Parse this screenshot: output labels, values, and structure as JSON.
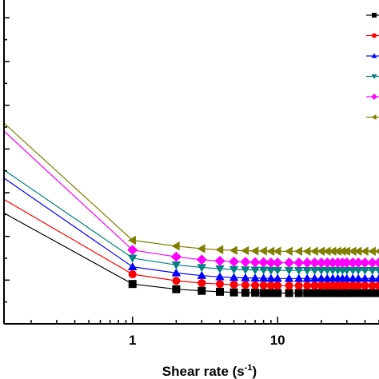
{
  "chart_data": {
    "type": "line",
    "title": "",
    "xlabel": "Shear rate (s",
    "xlabel_superscript": "-1",
    "xlabel_suffix": ")",
    "ylabel": "",
    "x_scale": "log",
    "xlim": [
      0.13,
      50
    ],
    "x_ticks": [
      1,
      10
    ],
    "x_tick_labels": [
      "1",
      "10"
    ],
    "ylim": [
      0,
      100
    ],
    "y_tick_labels_visible": false,
    "grid": false,
    "legend_position": "top-right",
    "x": [
      0.13,
      1,
      2,
      3,
      4,
      5,
      6,
      7,
      8,
      9,
      10,
      12,
      14,
      16,
      18,
      20,
      22,
      24,
      26,
      28,
      30,
      33,
      36,
      40,
      45,
      50
    ],
    "series": [
      {
        "name": "",
        "color": "#000000",
        "marker": "square",
        "values": [
          34.2,
          12.3,
          10.7,
          10.2,
          9.9,
          9.7,
          9.6,
          9.6,
          9.5,
          9.5,
          9.5,
          9.5,
          9.5,
          9.5,
          9.5,
          9.5,
          9.5,
          9.5,
          9.5,
          9.5,
          9.5,
          9.5,
          9.5,
          9.5,
          9.5,
          9.5
        ]
      },
      {
        "name": "",
        "color": "#ff0000",
        "marker": "circle",
        "values": [
          38.4,
          15.3,
          13.3,
          12.6,
          12.3,
          12.1,
          12.0,
          11.9,
          11.9,
          11.8,
          11.8,
          11.8,
          11.8,
          11.8,
          11.8,
          11.8,
          11.8,
          11.8,
          11.8,
          11.8,
          11.8,
          11.8,
          11.8,
          11.8,
          11.8,
          11.8
        ]
      },
      {
        "name": "",
        "color": "#0000ff",
        "marker": "triangle-up",
        "values": [
          45.0,
          17.6,
          15.7,
          14.9,
          14.5,
          14.3,
          14.2,
          14.1,
          14.1,
          14.0,
          14.0,
          14.0,
          14.0,
          14.0,
          14.0,
          14.0,
          14.0,
          14.0,
          14.0,
          14.0,
          14.0,
          14.0,
          14.0,
          14.0,
          14.0,
          14.0
        ]
      },
      {
        "name": "",
        "color": "#008080",
        "marker": "triangle-down",
        "values": [
          47.5,
          20.3,
          18.2,
          17.4,
          17.0,
          16.8,
          16.7,
          16.6,
          16.6,
          16.5,
          16.5,
          16.5,
          16.5,
          16.5,
          16.5,
          16.5,
          16.5,
          16.5,
          16.5,
          16.5,
          16.5,
          16.5,
          16.5,
          16.5,
          16.5,
          16.5
        ]
      },
      {
        "name": "",
        "color": "#ff00ff",
        "marker": "diamond",
        "values": [
          59.5,
          22.8,
          20.7,
          19.8,
          19.4,
          19.2,
          19.1,
          19.0,
          19.0,
          18.9,
          18.9,
          18.9,
          18.9,
          18.9,
          18.9,
          18.9,
          18.9,
          18.9,
          18.9,
          18.9,
          18.9,
          18.9,
          18.9,
          18.9,
          18.9,
          18.9
        ]
      },
      {
        "name": "",
        "color": "#808000",
        "marker": "triangle-left",
        "values": [
          62.0,
          25.8,
          24.0,
          23.2,
          22.9,
          22.7,
          22.6,
          22.5,
          22.5,
          22.4,
          22.4,
          22.4,
          22.4,
          22.4,
          22.4,
          22.4,
          22.4,
          22.4,
          22.4,
          22.4,
          22.4,
          22.4,
          22.4,
          22.4,
          22.4,
          22.4
        ]
      }
    ]
  }
}
